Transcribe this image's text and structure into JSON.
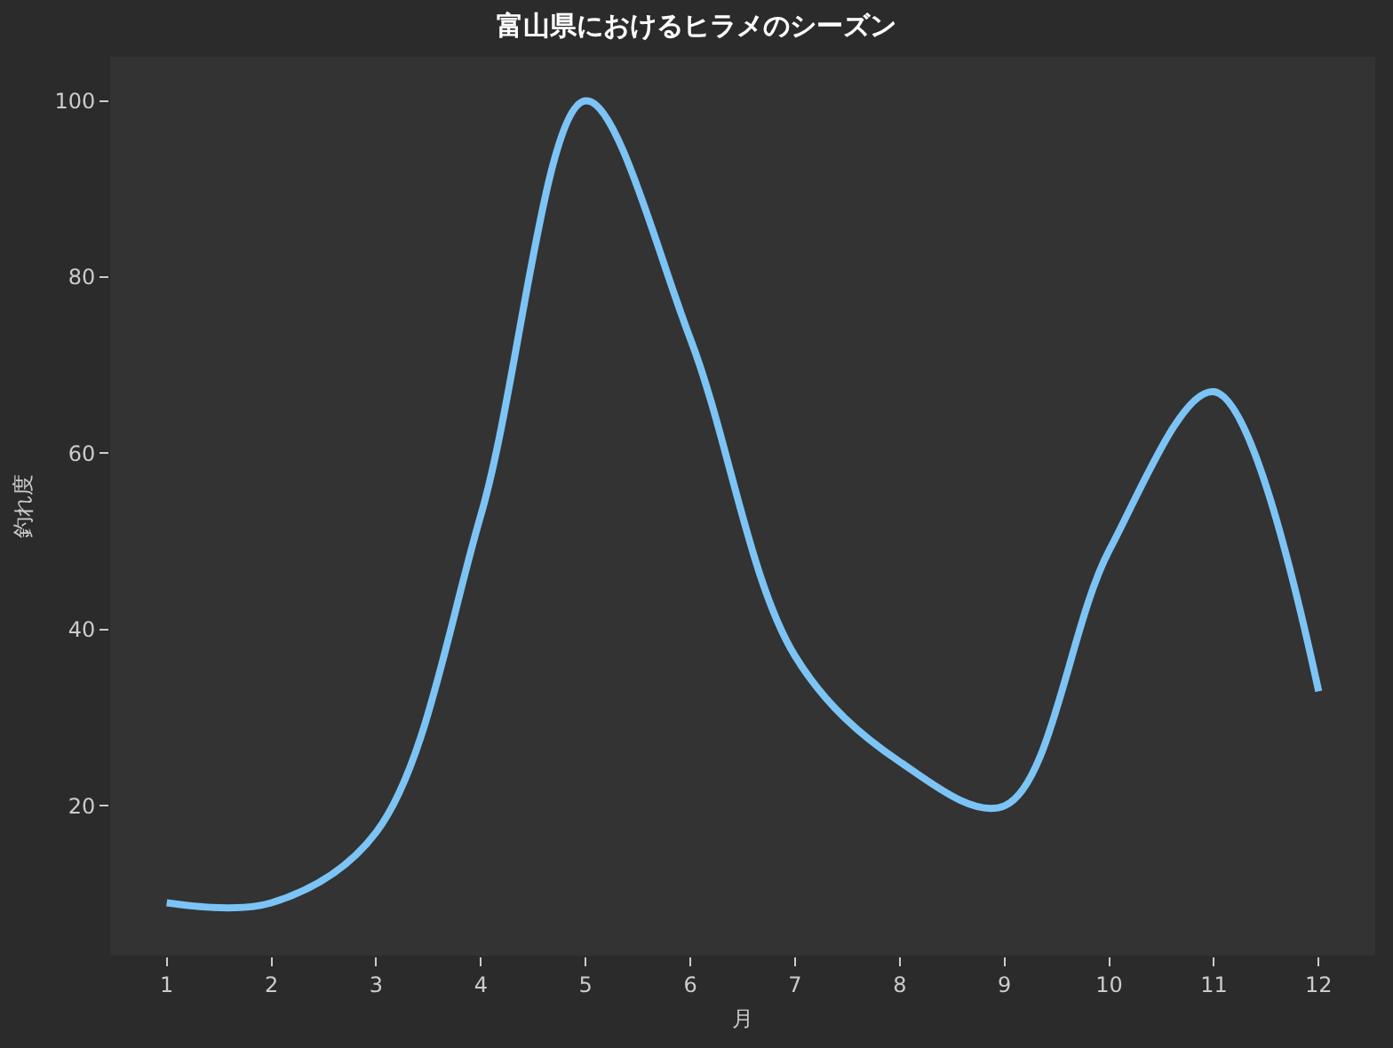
{
  "chart_data": {
    "type": "line",
    "title": "富山県におけるヒラメのシーズン",
    "xlabel": "月",
    "ylabel": "釣れ度",
    "x": [
      1,
      2,
      3,
      4,
      5,
      6,
      7,
      8,
      9,
      10,
      11,
      12
    ],
    "series": [
      {
        "color": "#7cc4f5",
        "values": [
          9,
          9,
          17,
          53,
          100,
          73,
          37,
          25,
          20,
          49,
          67,
          33
        ]
      }
    ],
    "xlim": [
      0.46,
      12.54
    ],
    "ylim": [
      3,
      105
    ],
    "xticks": [
      1,
      2,
      3,
      4,
      5,
      6,
      7,
      8,
      9,
      10,
      11,
      12
    ],
    "yticks": [
      20,
      40,
      60,
      80,
      100
    ],
    "grid": false,
    "marker": "none",
    "line_style": "solid"
  }
}
